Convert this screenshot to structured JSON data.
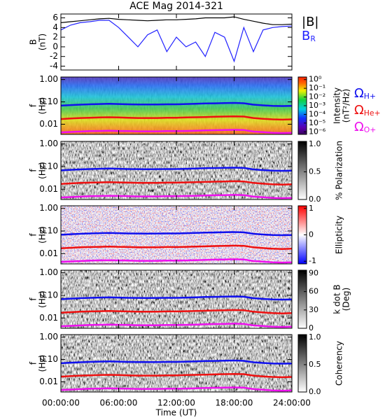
{
  "chart_data": [
    {
      "type": "line",
      "title": "ACE Mag 2014-321",
      "ylabel": [
        "B",
        "(nT)"
      ],
      "x": [
        0,
        1,
        2,
        3,
        4,
        5,
        6,
        7,
        8,
        9,
        10,
        11,
        12,
        13,
        14,
        15,
        16,
        17,
        18,
        19,
        20,
        21,
        22,
        23,
        24
      ],
      "xlim": [
        0,
        24
      ],
      "ylim": [
        -4.8,
        6.8
      ],
      "yticks": [
        -4,
        -2,
        0,
        2,
        4,
        6
      ],
      "series": [
        {
          "name": "|B|",
          "color": "#000000",
          "values": [
            5.0,
            5.2,
            5.4,
            5.6,
            5.8,
            5.9,
            5.7,
            5.6,
            5.5,
            5.4,
            5.5,
            5.6,
            5.6,
            5.7,
            5.8,
            6.0,
            6.0,
            6.0,
            6.2,
            5.7,
            5.3,
            4.9,
            4.6,
            4.6,
            4.7
          ]
        },
        {
          "name": "B",
          "subscript": "R",
          "color": "#2222ff",
          "values": [
            3.5,
            4.5,
            5.0,
            5.2,
            5.5,
            5.5,
            4.0,
            2.0,
            0,
            2.5,
            3.5,
            -1,
            2,
            0,
            1,
            -2,
            3,
            2,
            -3,
            4,
            -1,
            3.5,
            4,
            4.2,
            4.3
          ]
        }
      ]
    },
    {
      "type": "spectrogram",
      "ylabel": [
        "f",
        "(Hz)"
      ],
      "ylog": true,
      "ylim": [
        0.0035,
        1.3
      ],
      "yticks": [
        {
          "value": 1,
          "label": "1.00"
        },
        {
          "value": 0.1,
          "label": "0.10"
        },
        {
          "value": 0.01,
          "label": "0.01"
        }
      ],
      "colormap": "rainbow",
      "clabel": [
        "Intensity",
        "(nT²/Hz)"
      ],
      "clog": true,
      "clim": [
        5e-07,
        2
      ],
      "cticks": [
        {
          "value": 1,
          "label": "10⁰"
        },
        {
          "value": 0.1,
          "label": "10⁻¹"
        },
        {
          "value": 0.01,
          "label": "10⁻²"
        },
        {
          "value": 0.001,
          "label": "10⁻³"
        },
        {
          "value": 0.0001,
          "label": "10⁻⁴"
        },
        {
          "value": 1e-05,
          "label": "10⁻⁵"
        },
        {
          "value": 1e-06,
          "label": "10⁻⁶"
        }
      ],
      "series": [
        {
          "name": "Ω",
          "subscript": "H+",
          "color": "#1010ee",
          "values": [
            0.068,
            0.072,
            0.075,
            0.078,
            0.08,
            0.082,
            0.08,
            0.078,
            0.077,
            0.076,
            0.077,
            0.078,
            0.078,
            0.08,
            0.082,
            0.085,
            0.086,
            0.088,
            0.09,
            0.087,
            0.075,
            0.07,
            0.066,
            0.065,
            0.066
          ]
        },
        {
          "name": "Ω",
          "subscript": "He+",
          "color": "#ee1010",
          "values": [
            0.017,
            0.018,
            0.019,
            0.0195,
            0.02,
            0.0205,
            0.02,
            0.0195,
            0.019,
            0.019,
            0.019,
            0.0195,
            0.0195,
            0.02,
            0.0205,
            0.021,
            0.0215,
            0.022,
            0.0225,
            0.022,
            0.019,
            0.0175,
            0.0165,
            0.016,
            0.0165
          ]
        },
        {
          "name": "Ω",
          "subscript": "O+",
          "color": "#ee10ee",
          "values": [
            0.0043,
            0.0045,
            0.0047,
            0.0049,
            0.005,
            0.0051,
            0.005,
            0.0049,
            0.0048,
            0.0048,
            0.0048,
            0.0049,
            0.0049,
            0.005,
            0.0051,
            0.0053,
            0.0054,
            0.0055,
            0.0056,
            0.0055,
            0.0047,
            0.0044,
            0.0041,
            0.004,
            0.0041
          ]
        }
      ]
    },
    {
      "type": "spectrogram",
      "ylabel": [
        "f",
        "(Hz)"
      ],
      "ylog": true,
      "ylim": [
        0.0035,
        1.3
      ],
      "yticks": [
        {
          "value": 1,
          "label": "1.00"
        },
        {
          "value": 0.1,
          "label": "0.10"
        },
        {
          "value": 0.01,
          "label": "0.01"
        }
      ],
      "colormap": "gray",
      "clabel": [
        "% Polarization"
      ],
      "clim": [
        0,
        1.05
      ],
      "cticks": [
        {
          "value": 0,
          "label": "0.0"
        },
        {
          "value": 0.5,
          "label": "0.5"
        },
        {
          "value": 1,
          "label": "1.0"
        }
      ]
    },
    {
      "type": "spectrogram",
      "ylabel": [
        "f",
        "(Hz)"
      ],
      "ylog": true,
      "ylim": [
        0.0035,
        1.3
      ],
      "yticks": [
        {
          "value": 1,
          "label": "1.00"
        },
        {
          "value": 0.1,
          "label": "0.10"
        },
        {
          "value": 0.01,
          "label": "0.01"
        }
      ],
      "colormap": "bwr",
      "clabel": [
        "Ellipticity"
      ],
      "clim": [
        -1.1,
        1.1
      ],
      "cticks": [
        -1,
        0,
        1
      ]
    },
    {
      "type": "spectrogram",
      "ylabel": [
        "f",
        "(Hz)"
      ],
      "ylog": true,
      "ylim": [
        0.0035,
        1.3
      ],
      "yticks": [
        {
          "value": 1,
          "label": "1.00"
        },
        {
          "value": 0.1,
          "label": "0.10"
        },
        {
          "value": 0.01,
          "label": "0.01"
        }
      ],
      "colormap": "gray",
      "clabel": [
        "k dot B",
        "(Deg)"
      ],
      "clim": [
        0,
        95
      ],
      "cticks": [
        0,
        30,
        60,
        90
      ]
    },
    {
      "type": "spectrogram",
      "ylabel": [
        "f",
        "(Hz)"
      ],
      "ylog": true,
      "ylim": [
        0.0035,
        1.3
      ],
      "yticks": [
        {
          "value": 1,
          "label": "1.00"
        },
        {
          "value": 0.1,
          "label": "0.10"
        },
        {
          "value": 0.01,
          "label": "0.01"
        }
      ],
      "colormap": "gray",
      "clabel": [
        "Coherency"
      ],
      "clim": [
        0,
        1.05
      ],
      "cticks": [
        {
          "value": 0,
          "label": "0.0"
        },
        {
          "value": 0.5,
          "label": "0.5"
        },
        {
          "value": 1,
          "label": "1.0"
        }
      ],
      "xlabel": "Time (UT)",
      "xticks": [
        {
          "value": 0,
          "label": "00:00:00"
        },
        {
          "value": 6,
          "label": "06:00:00"
        },
        {
          "value": 12,
          "label": "12:00:00"
        },
        {
          "value": 18,
          "label": "18:00:00"
        },
        {
          "value": 24,
          "label": "24:00:00"
        }
      ]
    }
  ]
}
